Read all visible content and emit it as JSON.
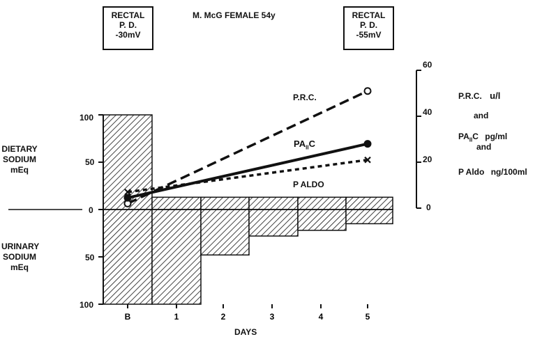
{
  "header": {
    "left_box": [
      "RECTAL",
      "P. D.",
      "-30mV"
    ],
    "title": "M. McG FEMALE 54y",
    "right_box": [
      "RECTAL",
      "P. D.",
      "-55mV"
    ]
  },
  "left_axis": {
    "top_label": [
      "DIETARY",
      "SODIUM",
      "mEq"
    ],
    "bottom_label": [
      "URINARY",
      "SODIUM",
      "mEq"
    ],
    "ticks": [
      "100",
      "50",
      "0",
      "50",
      "100"
    ]
  },
  "right_axis": {
    "ticks": [
      "60",
      "40",
      "20",
      "0"
    ],
    "legend": {
      "prc": "P.R.C.",
      "prc_unit": "u/l",
      "and1": "and",
      "pa": "PA",
      "pa_sub": "II",
      "pa_c": "C",
      "pa_unit": "pg/ml",
      "and2": "and",
      "ald": "P Aldo",
      "ald_unit": "ng/100ml"
    }
  },
  "x_axis": {
    "label": "DAYS"
  },
  "series_labels": {
    "prc": "P.R.C.",
    "pa": "PA",
    "pa_sub": "II",
    "pa_c": "C",
    "aldo": "P ALDO"
  },
  "chart_data": {
    "type": "bar",
    "categories": [
      "B",
      "1",
      "2",
      "3",
      "4",
      "5"
    ],
    "xlabel": "DAYS",
    "dietary_sodium": [
      100,
      13,
      13,
      13,
      13,
      13
    ],
    "urinary_sodium": [
      100,
      100,
      48,
      28,
      22,
      15
    ],
    "left_ylim": [
      -100,
      100
    ],
    "left_ticks": [
      100,
      50,
      0,
      50,
      100
    ],
    "right_ylim": [
      0,
      60
    ],
    "right_ticks": [
      0,
      20,
      40,
      60
    ],
    "lines": [
      {
        "name": "P.R.C.",
        "style": "long-dash",
        "marker": "open-circle",
        "x": [
          "B",
          "5"
        ],
        "y": [
          2,
          51
        ]
      },
      {
        "name": "PA II C",
        "style": "solid",
        "marker": "filled-circle",
        "x": [
          "B",
          "5"
        ],
        "y": [
          4.5,
          28
        ]
      },
      {
        "name": "P ALDO",
        "style": "short-dash",
        "marker": "x",
        "x": [
          "B",
          "5"
        ],
        "y": [
          7,
          21
        ]
      }
    ]
  }
}
